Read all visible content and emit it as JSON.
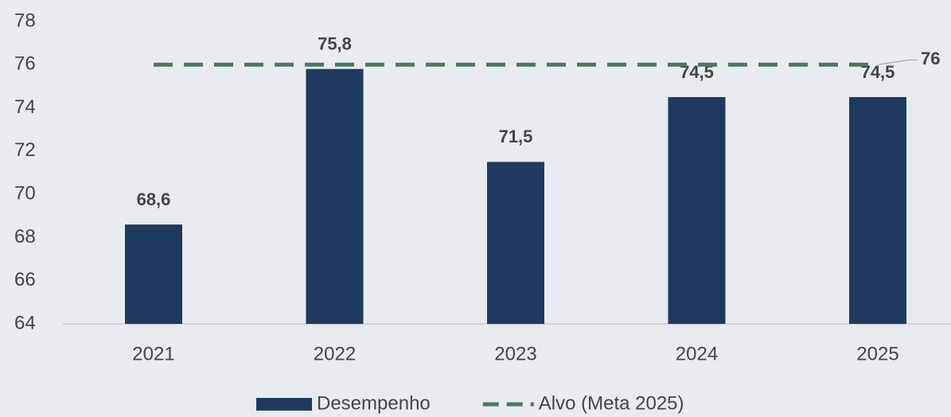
{
  "chart_data": {
    "type": "bar",
    "categories": [
      "2021",
      "2022",
      "2023",
      "2024",
      "2025"
    ],
    "series": [
      {
        "name": "Desempenho",
        "type": "bar",
        "color": "#1f3a5f",
        "values": [
          68.6,
          75.8,
          71.5,
          74.5,
          74.5
        ],
        "value_labels": [
          "68,6",
          "75,8",
          "71,5",
          "74,5",
          "74,5"
        ]
      },
      {
        "name": "Alvo (Meta 2025)",
        "type": "line",
        "dashed": true,
        "color": "#4a7a5a",
        "values": [
          76,
          76,
          76,
          76,
          76
        ]
      }
    ],
    "ylim": [
      64,
      78
    ],
    "yticks": [
      64,
      66,
      68,
      70,
      72,
      74,
      76,
      78
    ],
    "grid": false,
    "legend": "bottom"
  }
}
